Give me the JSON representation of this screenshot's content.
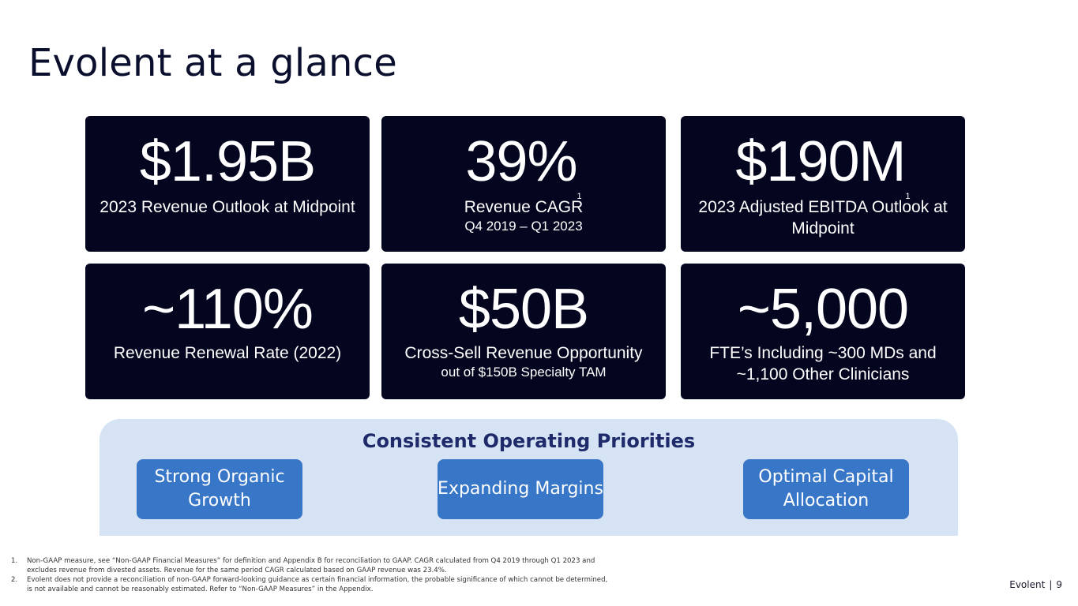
{
  "title": "Evolent at a glance",
  "cards": [
    {
      "value": "$1.95B",
      "sup": "",
      "line1": "2023 Revenue Outlook at Midpoint",
      "line2": ""
    },
    {
      "value": "39%",
      "sup": "1",
      "line1": "Revenue CAGR",
      "line2": "Q4 2019 – Q1 2023"
    },
    {
      "value": "$190M",
      "sup": "1",
      "line1": "2023 Adjusted EBITDA Outlook at Midpoint",
      "line2": ""
    },
    {
      "value": "~110%",
      "sup": "",
      "line1": "Revenue Renewal Rate (2022)",
      "line2": ""
    },
    {
      "value": "$50B",
      "sup": "",
      "line1": "Cross-Sell Revenue Opportunity",
      "line2": "out of $150B Specialty TAM"
    },
    {
      "value": "~5,000",
      "sup": "",
      "line1": "FTE’s Including ~300 MDs and ~1,100 Other Clinicians",
      "line2": ""
    }
  ],
  "priorities": {
    "heading": "Consistent Operating Priorities",
    "items": [
      "Strong Organic Growth",
      "Expanding Margins",
      "Optimal Capital Allocation"
    ]
  },
  "footnotes": [
    {
      "num": "1.",
      "text": "Non-GAAP measure, see “Non-GAAP Financial Measures” for definition and Appendix B for reconciliation to GAAP. CAGR calculated from Q4 2019 through Q1 2023 and excludes revenue from divested assets. Revenue for the same period CAGR calculated based on GAAP revenue was 23.4%."
    },
    {
      "num": "2.",
      "text": "Evolent does not provide a reconciliation of non-GAAP forward-looking guidance as certain financial information, the probable significance of which cannot be determined, is not available and cannot be  reasonably estimated. Refer to “Non-GAAP Measures” in the Appendix."
    }
  ],
  "footer": {
    "brand": "Evolent",
    "separator": "|",
    "page": "9"
  }
}
